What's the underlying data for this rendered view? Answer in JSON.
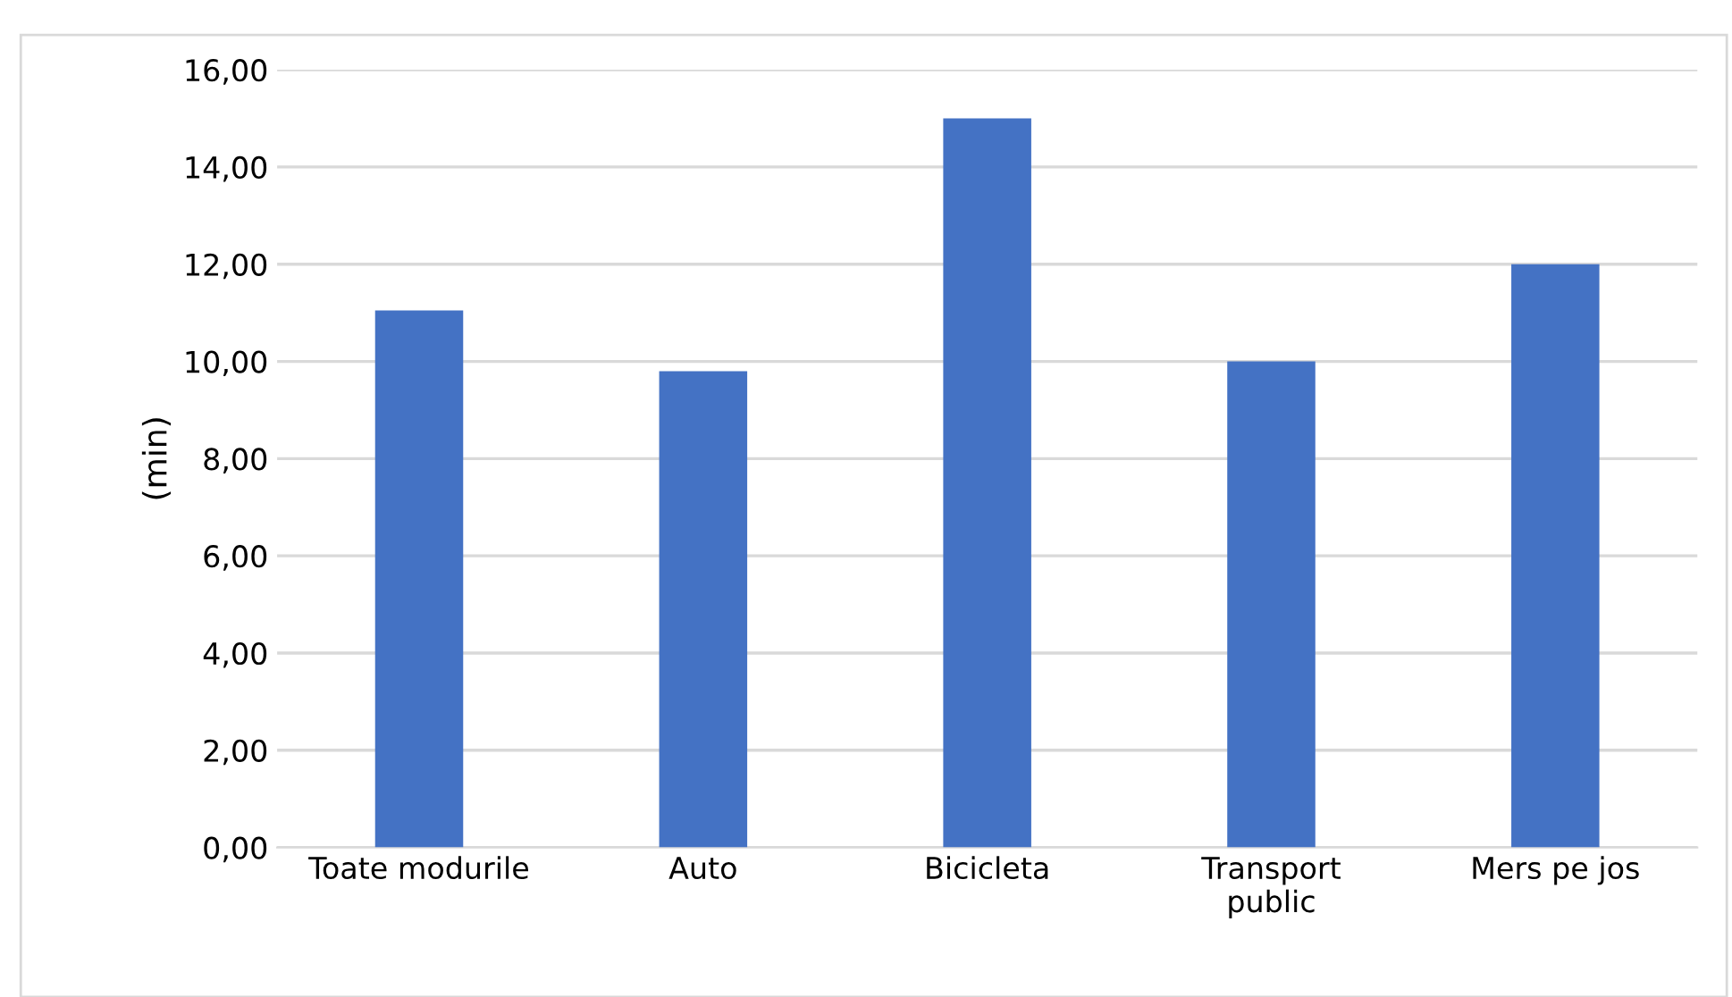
{
  "chart_data": {
    "type": "bar",
    "ylabel": "(min)",
    "categories": [
      "Toate modurile",
      "Auto",
      "Bicicleta",
      "Transport\npublic",
      "Mers pe jos"
    ],
    "values": [
      11.05,
      9.8,
      15.0,
      10.0,
      12.0
    ],
    "color": "#4472c4",
    "ylim": [
      0,
      16
    ],
    "yticks": [
      {
        "value": 0,
        "label": "0,00"
      },
      {
        "value": 2,
        "label": "2,00"
      },
      {
        "value": 4,
        "label": "4,00"
      },
      {
        "value": 6,
        "label": "6,00"
      },
      {
        "value": 8,
        "label": "8,00"
      },
      {
        "value": 10,
        "label": "10,00"
      },
      {
        "value": 12,
        "label": "12,00"
      },
      {
        "value": 14,
        "label": "14,00"
      },
      {
        "value": 16,
        "label": "16,00"
      }
    ],
    "grid": "y",
    "legend": false
  }
}
